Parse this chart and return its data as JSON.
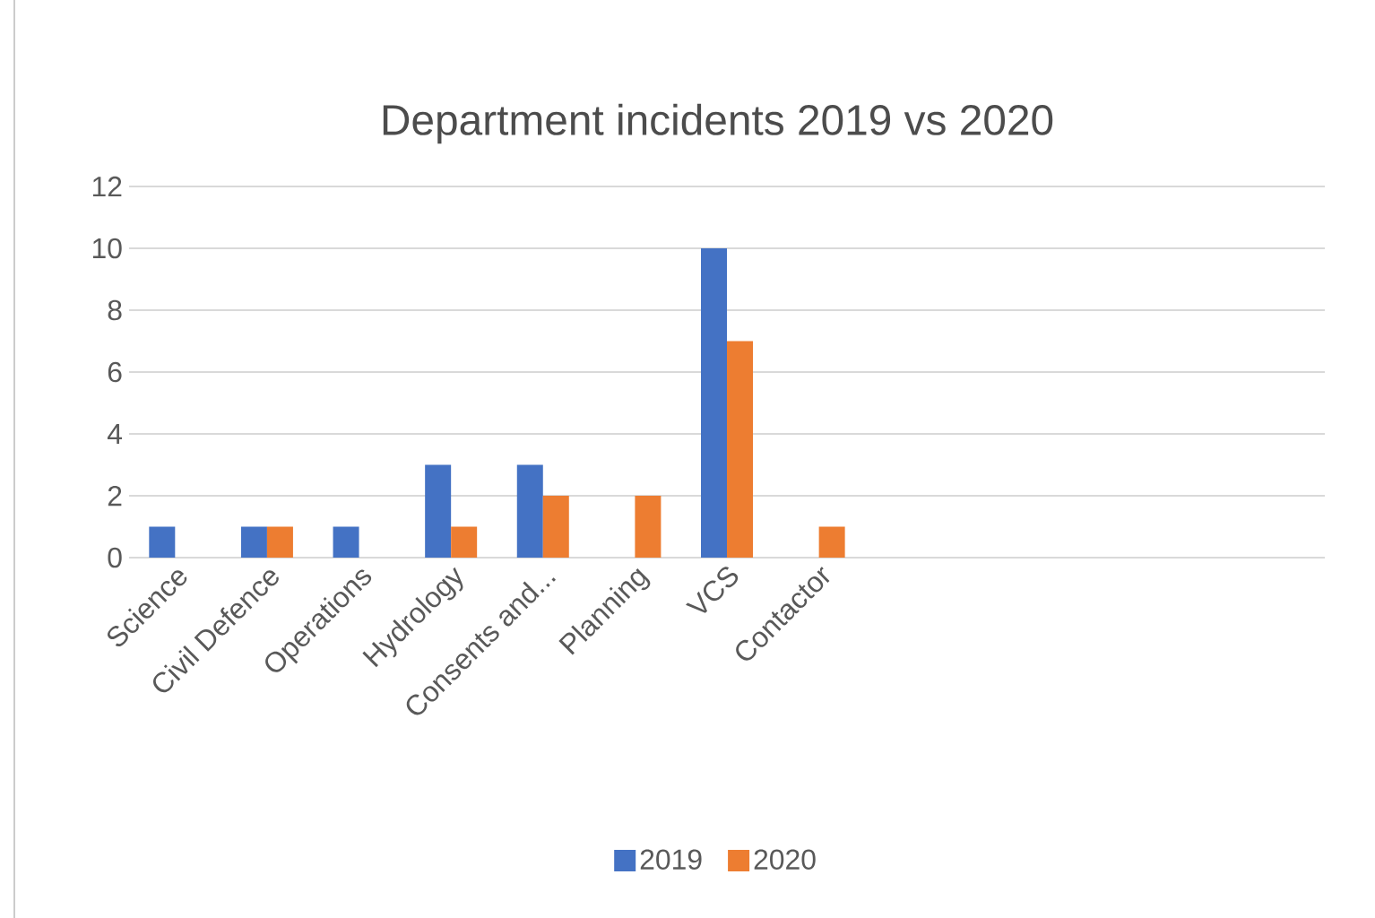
{
  "chart_data": {
    "type": "bar",
    "title": "Department incidents 2019 vs 2020",
    "categories": [
      "Science",
      "Civil Defence",
      "Operations",
      "Hydrology",
      "Consents and...",
      "Planning",
      "VCS",
      "Contactor",
      null,
      null,
      null,
      null,
      null
    ],
    "series": [
      {
        "name": "2019",
        "color": "#4472c4",
        "values": [
          1,
          1,
          1,
          3,
          3,
          null,
          10,
          null,
          null,
          null,
          null,
          null,
          null
        ]
      },
      {
        "name": "2020",
        "color": "#ed7d31",
        "values": [
          null,
          1,
          null,
          1,
          2,
          2,
          7,
          1,
          null,
          null,
          null,
          null,
          null
        ]
      }
    ],
    "ylim": [
      0,
      12
    ],
    "yticks": [
      0,
      2,
      4,
      6,
      8,
      10,
      12
    ],
    "grid": "y",
    "legend": "bottom"
  }
}
